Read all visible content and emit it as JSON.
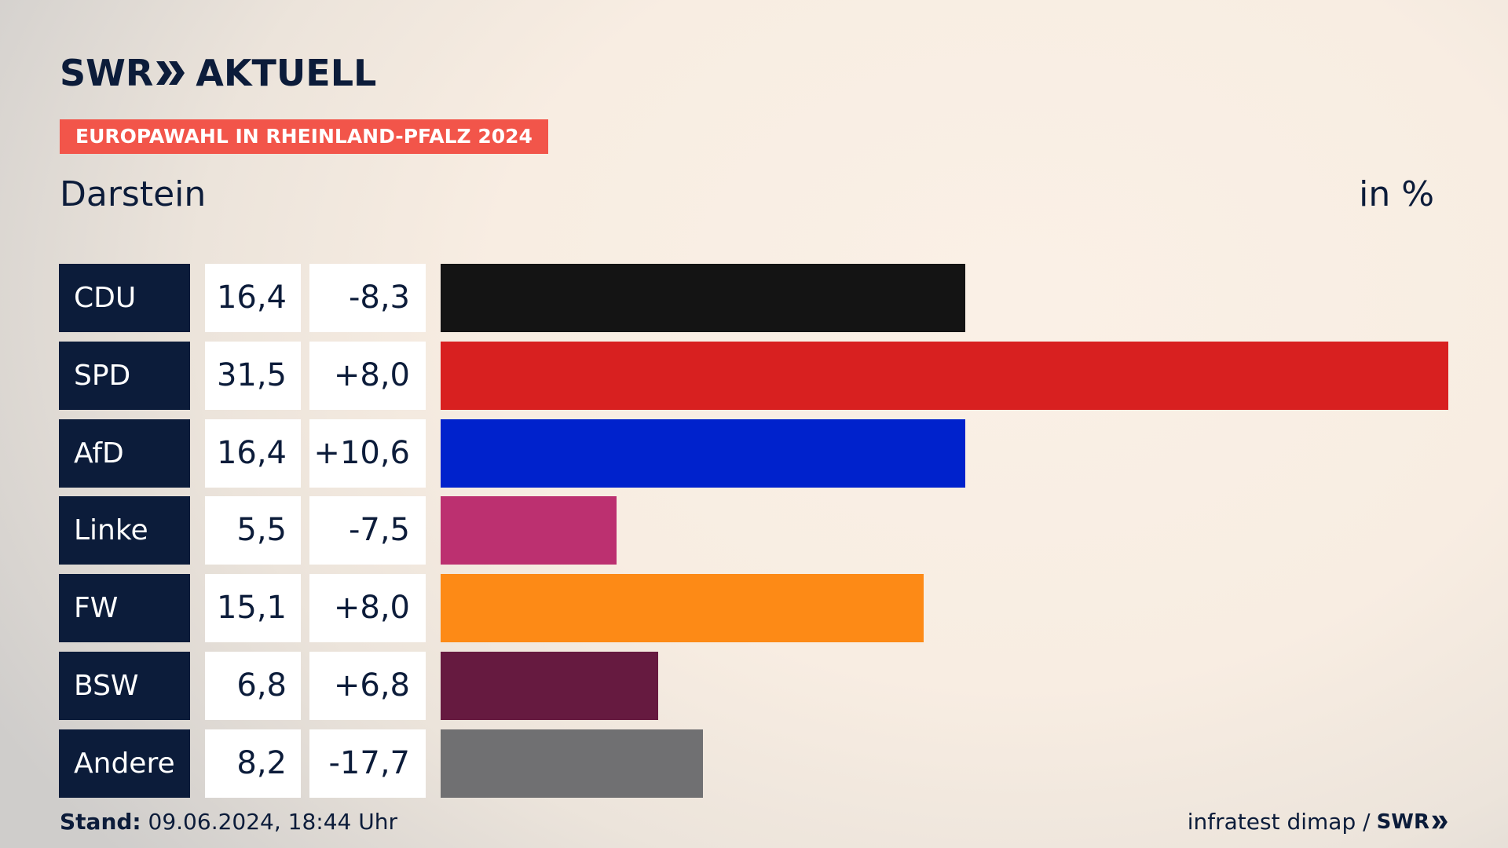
{
  "logo": {
    "brand": "SWR",
    "program": "AKTUELL"
  },
  "header": {
    "tag": "EUROPAWAHL IN RHEINLAND-PFALZ 2024",
    "place": "Darstein",
    "unit": "in %"
  },
  "chart_data": {
    "type": "bar",
    "orientation": "horizontal",
    "title": "EUROPAWAHL IN RHEINLAND-PFALZ 2024",
    "subtitle": "Darstein",
    "unit": "in %",
    "categories": [
      "CDU",
      "SPD",
      "AfD",
      "Linke",
      "FW",
      "BSW",
      "Andere"
    ],
    "values": [
      16.4,
      31.5,
      16.4,
      5.5,
      15.1,
      6.8,
      8.2
    ],
    "value_labels": [
      "16,4",
      "31,5",
      "16,4",
      "5,5",
      "15,1",
      "6,8",
      "8,2"
    ],
    "diff_labels": [
      "-8,3",
      "+8,0",
      "+10,6",
      "-7,5",
      "+8,0",
      "+6,8",
      "-17,7"
    ],
    "colors": [
      "#141414",
      "#d82020",
      "#0022cc",
      "#bc3070",
      "#fd8a16",
      "#661a40",
      "#707072"
    ],
    "grid": false
  },
  "footer": {
    "stand_label": "Stand:",
    "stand_value": "09.06.2024, 18:44 Uhr",
    "source": "infratest dimap /",
    "source_brand": "SWR"
  }
}
